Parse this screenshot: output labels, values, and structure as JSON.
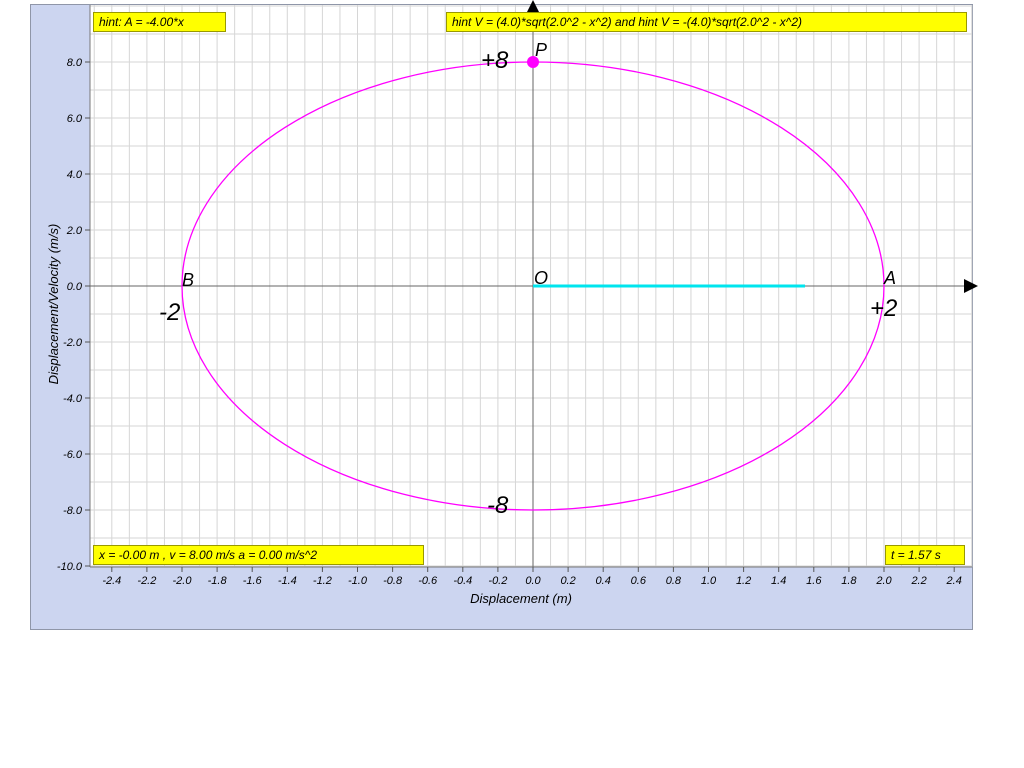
{
  "hints": {
    "accel": "hint: A = -4.00*x",
    "velocity": "hint V = (4.0)*sqrt(2.0^2 - x^2) and hint V = -(4.0)*sqrt(2.0^2 - x^2)",
    "state": "x = -0.00 m , v = 8.00 m/s a = 0.00 m/s^2",
    "time": "t = 1.57 s"
  },
  "colors": {
    "panel": "#ccd5f0",
    "grid": "#d6d6d6",
    "ellipse": "#ff00ff",
    "displacement_line": "#00e5ee",
    "point": "#ff00ff",
    "hint_bg": "#ffff00"
  },
  "chart_data": {
    "type": "line",
    "xlabel": "Displacement (m)",
    "ylabel": "Displacement/Velocity (m/s)",
    "xlim": [
      -2.5,
      2.5
    ],
    "ylim": [
      -10,
      10
    ],
    "grid": true,
    "x_ticks": [
      "-2.4",
      "-2.2",
      "-2.0",
      "-1.8",
      "-1.6",
      "-1.4",
      "-1.2",
      "-1.0",
      "-0.8",
      "-0.6",
      "-0.4",
      "-0.2",
      "0.0",
      "0.2",
      "0.4",
      "0.6",
      "0.8",
      "1.0",
      "1.2",
      "1.4",
      "1.6",
      "1.8",
      "2.0",
      "2.2",
      "2.4"
    ],
    "y_ticks": [
      "-10.0",
      "-8.0",
      "-6.0",
      "-4.0",
      "-2.0",
      "0.0",
      "2.0",
      "4.0",
      "6.0",
      "8.0"
    ],
    "ellipse": {
      "amplitude": 2.0,
      "max_velocity": 8.0
    },
    "point": {
      "x": 0.0,
      "v": 8.0
    },
    "displacement_segment": {
      "from": 0.0,
      "to": 1.55
    },
    "labels": {
      "P": "P",
      "O": "O",
      "A": "A",
      "B": "B",
      "plus_v": "+8",
      "minus_v": "-8",
      "plus_x": "+2",
      "minus_x": "-2"
    }
  }
}
